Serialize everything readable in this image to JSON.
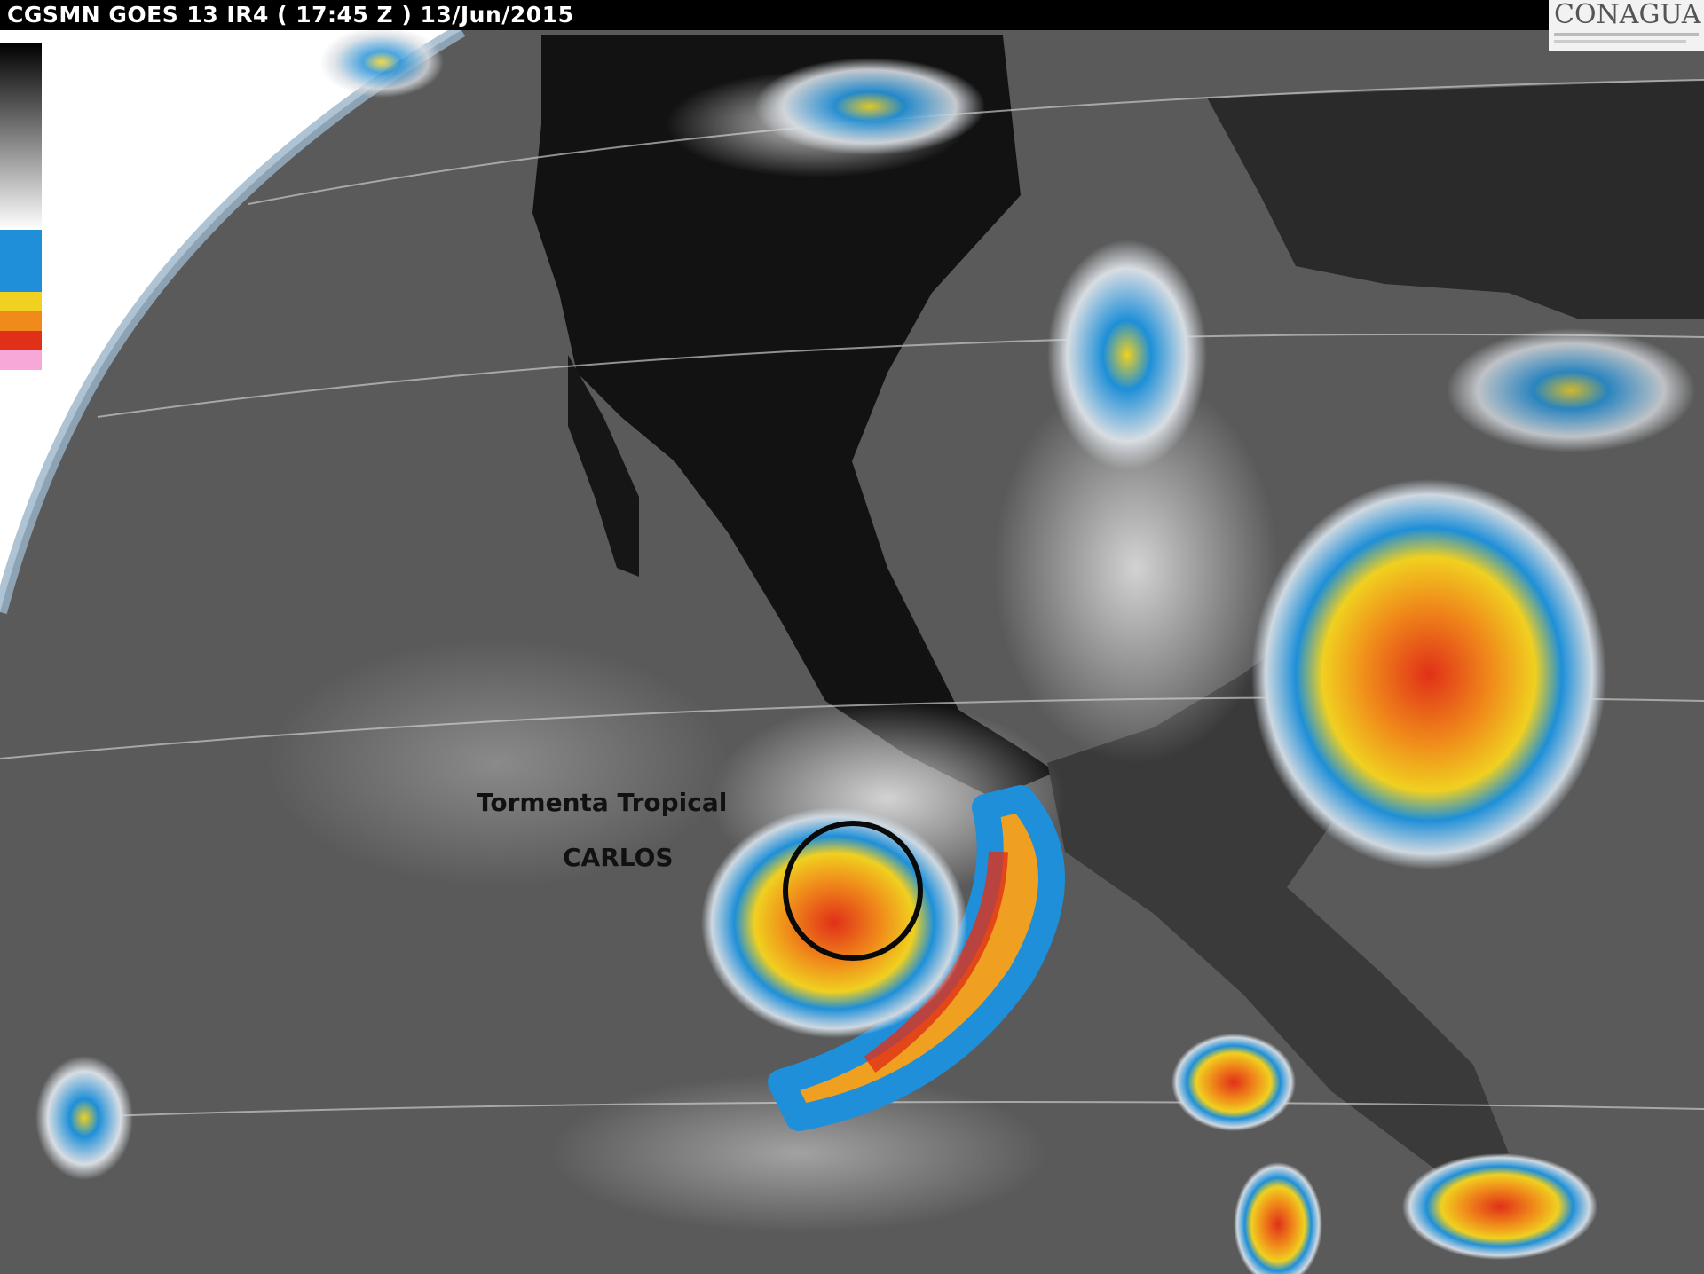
{
  "header": {
    "title": "CGSMN GOES 13 IR4 ( 17:45 Z ) 13/Jun/2015"
  },
  "logo": {
    "text": "CONAGUA"
  },
  "annotation": {
    "line1": "Tormenta Tropical",
    "line2": "CARLOS"
  },
  "colors": {
    "cold_cloud_blue": "#1e8fd8",
    "yellow": "#f0d020",
    "orange": "#f08a1a",
    "red": "#e03018",
    "land": "#111111",
    "ocean": "#5e5e5e"
  },
  "colorbar": {
    "segments": [
      "black-to-white gradient",
      "white",
      "blue",
      "yellow",
      "orange",
      "red",
      "pink"
    ]
  }
}
